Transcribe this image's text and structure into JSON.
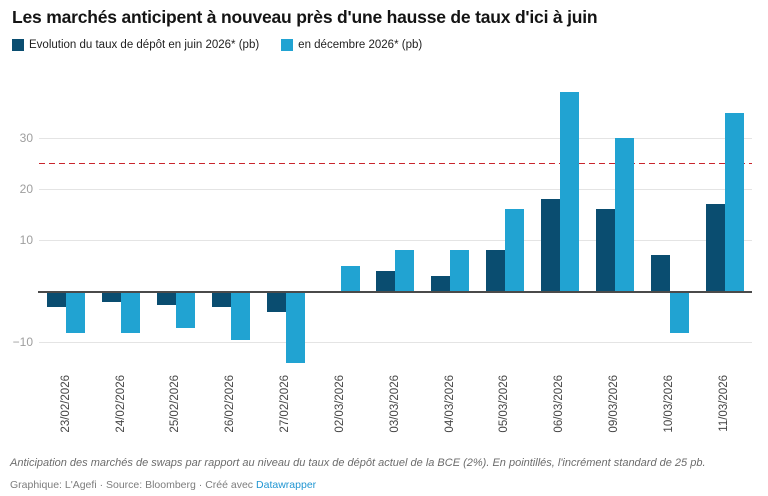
{
  "header": {
    "title": "Les marchés anticipent à nouveau près d'une hausse de taux d'ici à juin"
  },
  "chart_data": {
    "type": "bar",
    "title": "Les marchés anticipent à nouveau près d'une hausse de taux d'ici à juin",
    "categories": [
      "23/02/2026",
      "24/02/2026",
      "25/02/2026",
      "26/02/2026",
      "27/02/2026",
      "02/03/2026",
      "03/03/2026",
      "04/03/2026",
      "05/03/2026",
      "06/03/2026",
      "09/03/2026",
      "10/03/2026",
      "11/03/2026"
    ],
    "series": [
      {
        "name": "Evolution du taux de dépôt en juin 2026* (pb)",
        "color": "#0a4d70",
        "values": [
          -3,
          -2,
          -2.5,
          -3,
          -4,
          0,
          4,
          3,
          8,
          18,
          16,
          7,
          17
        ]
      },
      {
        "name": "en décembre 2026* (pb)",
        "color": "#21a3d2",
        "values": [
          -8,
          -8,
          -7,
          -9.5,
          -14,
          5,
          8,
          8,
          16,
          39,
          30,
          -8,
          35
        ]
      }
    ],
    "xlabel": "",
    "ylabel": "",
    "unit": "pb",
    "yticks": [
      30,
      20,
      10,
      -10
    ],
    "ylim": [
      -16,
      40
    ],
    "grid": "horizontal",
    "legend_position": "top",
    "reference_line": {
      "value": 25,
      "style": "dashed",
      "color": "#c9252d",
      "meaning": "incrément standard de 25 pb"
    }
  },
  "colors": {
    "baseline": "#4a4a4a",
    "gridline": "#e4e4e4",
    "ytick_label": "#9e9e9e",
    "xtick_label": "#464646",
    "link": "#2196d2"
  },
  "footer": {
    "note": "Anticipation des marchés de swaps par rapport au niveau du taux de dépôt actuel de la BCE (2%). En pointillés, l'incrément standard de 25 pb.",
    "credits_text": "Graphique: L'Agefi · Source: Bloomberg · Créé avec",
    "credits_link": "Datawrapper"
  }
}
